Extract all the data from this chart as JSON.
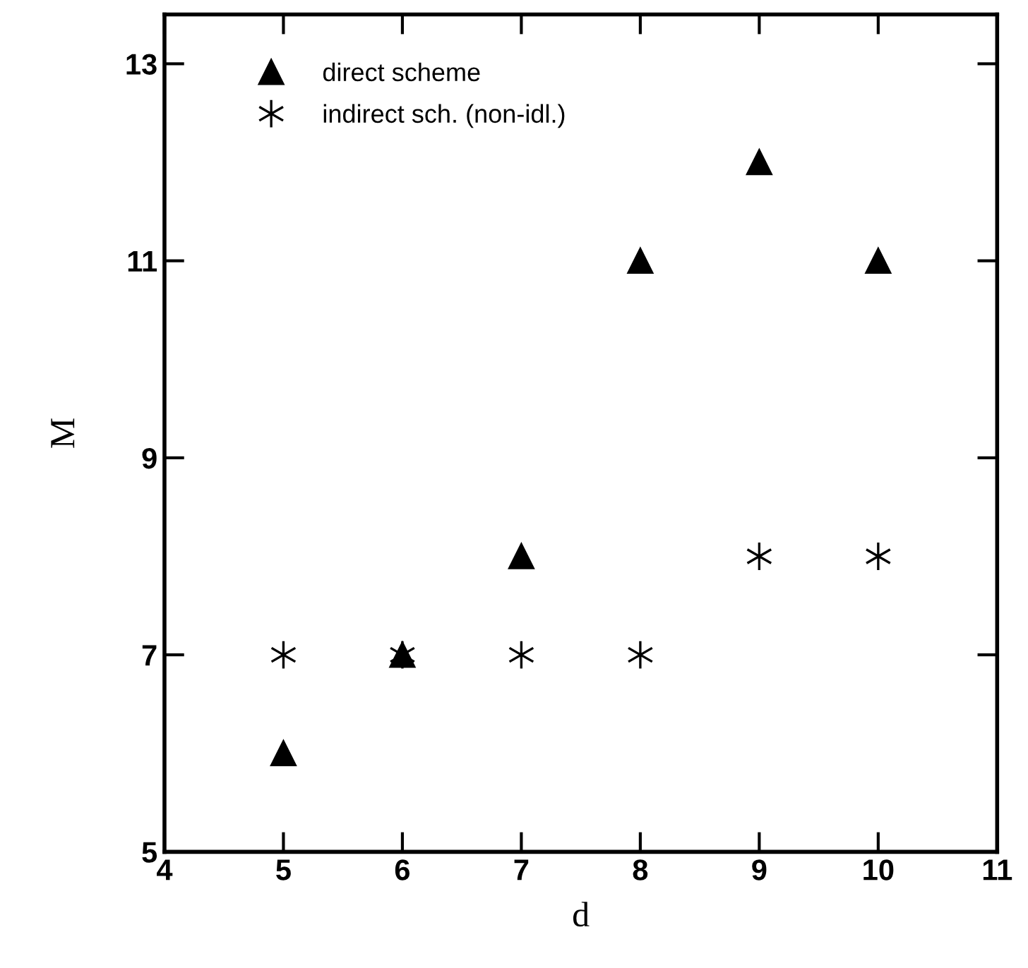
{
  "chart_data": {
    "type": "scatter",
    "xlabel": "d",
    "ylabel": "M",
    "x": [
      5,
      6,
      7,
      8,
      9,
      10
    ],
    "series": [
      {
        "name": "direct scheme",
        "color": "#000000",
        "marker": "triangle",
        "values": [
          6,
          7,
          8,
          11,
          12,
          11
        ]
      },
      {
        "name": "indirect sch. (non-idl.)",
        "color": "#000000",
        "marker": "cross",
        "values": [
          7,
          7,
          7,
          7,
          8,
          8
        ]
      }
    ],
    "xlim": [
      4,
      11
    ],
    "xticks": [
      4,
      5,
      6,
      7,
      8,
      9,
      10,
      11
    ],
    "ylim": [
      5,
      13.5
    ],
    "yticks": [
      5,
      7,
      9,
      11,
      13
    ],
    "grid": false,
    "legend": "top left"
  }
}
